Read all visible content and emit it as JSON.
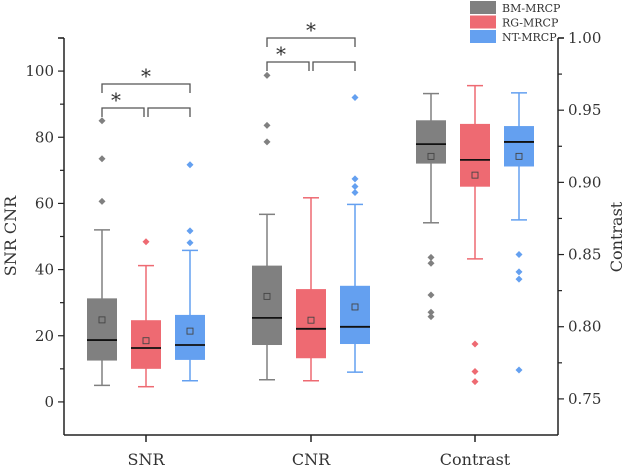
{
  "chart_data": {
    "type": "box",
    "categories": [
      "SNR",
      "CNR",
      "Contrast"
    ],
    "ylabel_left": "SNR  CNR",
    "ylabel_right": "Contrast",
    "ylim_left": [
      -10,
      110
    ],
    "ylim_right": [
      0.725,
      1.0
    ],
    "yticks_left": [
      "0",
      "20",
      "40",
      "60",
      "80",
      "100"
    ],
    "yticks_right": [
      "0.75",
      "0.80",
      "0.85",
      "0.90",
      "0.95",
      "1.00"
    ],
    "legend_position": "top-right",
    "series": [
      {
        "name": "BM-MRCP",
        "color": "#808080",
        "boxes": [
          {
            "whisker_low": 5,
            "q1": 12.5,
            "median": 18.7,
            "q3": 31.3,
            "whisker_high": 52,
            "mean": 24.8,
            "outliers": [
              85,
              73.5,
              60.6
            ]
          },
          {
            "whisker_low": 6.7,
            "q1": 17.2,
            "median": 25.4,
            "q3": 41.2,
            "whisker_high": 56.7,
            "mean": 31.9,
            "outliers": [
              98.7,
              83.6,
              78.6
            ]
          },
          {
            "whisker_low": 0.872,
            "q1": 0.913,
            "median": 0.9265,
            "q3": 0.943,
            "whisker_high": 0.9615,
            "mean": 0.918,
            "outliers": [
              0.848,
              0.844,
              0.822,
              0.81,
              0.807
            ]
          }
        ]
      },
      {
        "name": "RG-MRCP",
        "color": "#ee6a72",
        "boxes": [
          {
            "whisker_low": 4.6,
            "q1": 10,
            "median": 16.3,
            "q3": 24.7,
            "whisker_high": 41.2,
            "mean": 18.5,
            "outliers": [
              48.4
            ]
          },
          {
            "whisker_low": 6.4,
            "q1": 13.2,
            "median": 22.1,
            "q3": 34.1,
            "whisker_high": 61.7,
            "mean": 24.7,
            "outliers": []
          },
          {
            "whisker_low": 0.847,
            "q1": 0.897,
            "median": 0.9156,
            "q3": 0.9405,
            "whisker_high": 0.967,
            "mean": 0.905,
            "outliers": [
              0.788,
              0.769,
              0.762
            ]
          }
        ]
      },
      {
        "name": "NT-MRCP",
        "color": "#64a0f0",
        "boxes": [
          {
            "whisker_low": 6.4,
            "q1": 12.7,
            "median": 17.2,
            "q3": 26.3,
            "whisker_high": 45.8,
            "mean": 21.4,
            "outliers": [
              71.7,
              51.7,
              48.1
            ]
          },
          {
            "whisker_low": 9.0,
            "q1": 17.5,
            "median": 22.7,
            "q3": 35.1,
            "whisker_high": 59.7,
            "mean": 28.7,
            "outliers": [
              92,
              67.4,
              65.1,
              63.3
            ]
          },
          {
            "whisker_low": 0.874,
            "q1": 0.911,
            "median": 0.928,
            "q3": 0.939,
            "whisker_high": 0.962,
            "mean": 0.918,
            "outliers": [
              0.85,
              0.838,
              0.833,
              0.77
            ]
          }
        ]
      }
    ],
    "significance": [
      {
        "category": "SNR",
        "from": "BM-MRCP",
        "to": "RG-MRCP",
        "label": "*"
      },
      {
        "category": "SNR",
        "from": "BM-MRCP",
        "to": "NT-MRCP",
        "label": "*"
      },
      {
        "category": "CNR",
        "from": "BM-MRCP",
        "to": "RG-MRCP",
        "label": "*"
      },
      {
        "category": "CNR",
        "from": "BM-MRCP",
        "to": "NT-MRCP",
        "label": "*"
      }
    ]
  }
}
